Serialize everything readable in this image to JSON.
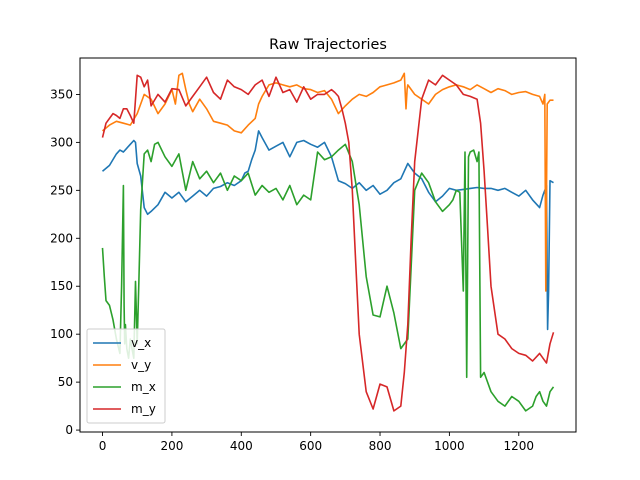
{
  "chart_data": {
    "type": "line",
    "title": "Raw Trajectories",
    "xlabel": "",
    "ylabel": "",
    "xlim": [
      -65,
      1365
    ],
    "ylim": [
      -2,
      388
    ],
    "xticks": [
      0,
      200,
      400,
      600,
      800,
      1000,
      1200
    ],
    "yticks": [
      0,
      50,
      100,
      150,
      200,
      250,
      300,
      350
    ],
    "grid": false,
    "legend": "lower-left",
    "series": [
      {
        "name": "v_x",
        "color": "#1f77b4",
        "x": [
          0,
          20,
          40,
          50,
          60,
          80,
          90,
          95,
          100,
          110,
          120,
          130,
          140,
          160,
          180,
          200,
          220,
          240,
          260,
          280,
          300,
          320,
          340,
          360,
          380,
          400,
          410,
          420,
          430,
          440,
          450,
          460,
          480,
          500,
          520,
          540,
          560,
          580,
          600,
          620,
          640,
          660,
          680,
          700,
          720,
          740,
          760,
          780,
          800,
          820,
          840,
          860,
          880,
          900,
          920,
          940,
          960,
          980,
          1000,
          1020,
          1040,
          1060,
          1080,
          1100,
          1120,
          1140,
          1160,
          1180,
          1200,
          1220,
          1240,
          1260,
          1270,
          1275,
          1278,
          1280,
          1283,
          1286,
          1290,
          1300
        ],
        "y": [
          270,
          276,
          288,
          292,
          290,
          298,
          302,
          300,
          278,
          265,
          232,
          225,
          228,
          235,
          248,
          242,
          248,
          238,
          244,
          250,
          244,
          252,
          254,
          258,
          255,
          260,
          268,
          270,
          282,
          292,
          312,
          305,
          292,
          296,
          300,
          285,
          300,
          302,
          298,
          295,
          300,
          285,
          260,
          257,
          252,
          258,
          250,
          255,
          246,
          250,
          258,
          262,
          278,
          268,
          262,
          248,
          238,
          244,
          252,
          250,
          251,
          252,
          253,
          252,
          252,
          250,
          252,
          248,
          244,
          250,
          240,
          232,
          245,
          250,
          252,
          255,
          105,
          145,
          260,
          258
        ]
      },
      {
        "name": "v_y",
        "color": "#ff7f0e",
        "x": [
          0,
          20,
          40,
          60,
          80,
          100,
          110,
          120,
          140,
          160,
          180,
          200,
          210,
          220,
          230,
          240,
          250,
          260,
          280,
          300,
          320,
          340,
          360,
          380,
          400,
          420,
          440,
          450,
          460,
          480,
          500,
          520,
          540,
          560,
          580,
          600,
          620,
          640,
          660,
          680,
          700,
          720,
          740,
          760,
          780,
          800,
          820,
          840,
          860,
          870,
          875,
          878,
          880,
          900,
          920,
          940,
          960,
          980,
          1000,
          1020,
          1040,
          1060,
          1080,
          1100,
          1120,
          1140,
          1160,
          1180,
          1200,
          1220,
          1240,
          1260,
          1270,
          1275,
          1278,
          1280,
          1282,
          1286,
          1290,
          1300
        ],
        "y": [
          312,
          318,
          322,
          320,
          318,
          330,
          340,
          350,
          345,
          330,
          340,
          355,
          340,
          370,
          372,
          355,
          340,
          332,
          345,
          335,
          322,
          320,
          318,
          312,
          310,
          318,
          325,
          340,
          348,
          360,
          362,
          360,
          358,
          360,
          356,
          355,
          352,
          354,
          345,
          330,
          338,
          345,
          350,
          348,
          352,
          358,
          360,
          362,
          365,
          372,
          335,
          355,
          360,
          350,
          345,
          340,
          350,
          355,
          358,
          360,
          358,
          355,
          360,
          356,
          352,
          356,
          354,
          350,
          352,
          353,
          350,
          348,
          340,
          350,
          145,
          245,
          340,
          342,
          344,
          344
        ]
      },
      {
        "name": "m_x",
        "color": "#2ca02c",
        "x": [
          0,
          5,
          10,
          20,
          30,
          40,
          50,
          55,
          60,
          62,
          64,
          66,
          70,
          75,
          80,
          85,
          90,
          95,
          100,
          105,
          110,
          120,
          130,
          140,
          150,
          160,
          180,
          200,
          220,
          240,
          260,
          280,
          300,
          320,
          340,
          360,
          380,
          400,
          420,
          440,
          460,
          480,
          500,
          520,
          540,
          560,
          580,
          600,
          620,
          640,
          660,
          680,
          700,
          720,
          740,
          760,
          780,
          800,
          820,
          840,
          860,
          880,
          900,
          920,
          940,
          960,
          980,
          1000,
          1010,
          1020,
          1030,
          1040,
          1045,
          1050,
          1055,
          1060,
          1070,
          1080,
          1085,
          1090,
          1100,
          1120,
          1140,
          1160,
          1180,
          1200,
          1220,
          1240,
          1250,
          1260,
          1270,
          1280,
          1290,
          1300
        ],
        "y": [
          190,
          160,
          135,
          130,
          115,
          95,
          80,
          150,
          255,
          130,
          90,
          110,
          85,
          75,
          95,
          85,
          75,
          155,
          90,
          160,
          230,
          288,
          292,
          280,
          298,
          300,
          285,
          275,
          288,
          250,
          280,
          262,
          270,
          258,
          268,
          250,
          265,
          260,
          268,
          245,
          255,
          248,
          252,
          240,
          255,
          235,
          245,
          240,
          290,
          282,
          285,
          292,
          298,
          280,
          235,
          160,
          120,
          118,
          150,
          122,
          85,
          95,
          250,
          268,
          258,
          238,
          228,
          235,
          240,
          250,
          248,
          145,
          290,
          55,
          285,
          290,
          292,
          280,
          290,
          55,
          60,
          40,
          30,
          25,
          35,
          30,
          20,
          25,
          35,
          40,
          30,
          25,
          40,
          45
        ]
      },
      {
        "name": "m_y",
        "color": "#d62728",
        "x": [
          0,
          10,
          20,
          30,
          40,
          50,
          60,
          70,
          80,
          90,
          100,
          110,
          120,
          130,
          140,
          160,
          180,
          200,
          220,
          240,
          260,
          280,
          300,
          320,
          340,
          360,
          380,
          400,
          420,
          440,
          460,
          480,
          500,
          520,
          540,
          560,
          580,
          600,
          620,
          640,
          660,
          670,
          680,
          690,
          700,
          710,
          720,
          730,
          740,
          760,
          780,
          800,
          820,
          840,
          860,
          870,
          880,
          890,
          900,
          920,
          940,
          960,
          980,
          1000,
          1020,
          1040,
          1060,
          1080,
          1090,
          1100,
          1110,
          1120,
          1140,
          1160,
          1180,
          1200,
          1220,
          1240,
          1260,
          1270,
          1280,
          1290,
          1300
        ],
        "y": [
          305,
          320,
          325,
          330,
          328,
          325,
          335,
          335,
          328,
          320,
          370,
          368,
          358,
          365,
          338,
          350,
          342,
          356,
          355,
          338,
          348,
          358,
          368,
          352,
          345,
          365,
          358,
          355,
          350,
          360,
          365,
          348,
          368,
          352,
          355,
          342,
          358,
          345,
          350,
          350,
          355,
          352,
          348,
          335,
          320,
          300,
          250,
          175,
          100,
          40,
          22,
          48,
          45,
          20,
          25,
          60,
          110,
          200,
          280,
          345,
          365,
          360,
          370,
          365,
          360,
          350,
          348,
          345,
          320,
          270,
          210,
          150,
          100,
          95,
          85,
          80,
          78,
          72,
          80,
          75,
          70,
          90,
          102
        ]
      }
    ]
  }
}
